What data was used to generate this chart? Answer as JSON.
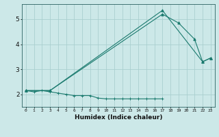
{
  "xlabel": "Humidex (Indice chaleur)",
  "background_color": "#cce8e8",
  "grid_color": "#aacfcf",
  "line_color": "#1a7a6e",
  "x_min": -0.5,
  "x_max": 23.5,
  "y_min": 1.5,
  "y_max": 5.6,
  "yticks": [
    2,
    3,
    4,
    5
  ],
  "xticks": [
    0,
    1,
    2,
    3,
    4,
    5,
    6,
    7,
    8,
    9,
    10,
    11,
    12,
    13,
    14,
    15,
    16,
    17,
    18,
    19,
    20,
    21,
    22,
    23
  ],
  "series1_x": [
    0,
    1,
    2,
    3,
    4,
    5,
    6,
    7,
    8,
    9,
    10,
    11,
    12,
    13,
    14,
    15,
    16,
    17
  ],
  "series1_y": [
    2.15,
    2.1,
    2.15,
    2.1,
    2.05,
    2.0,
    1.95,
    1.95,
    1.95,
    1.85,
    1.82,
    1.82,
    1.82,
    1.82,
    1.82,
    1.82,
    1.82,
    1.82
  ],
  "series2_x": [
    0,
    3,
    17,
    22,
    23
  ],
  "series2_y": [
    2.15,
    2.15,
    5.35,
    3.3,
    3.45
  ],
  "series3_x": [
    0,
    3,
    17,
    19,
    21,
    22,
    23
  ],
  "series3_y": [
    2.15,
    2.15,
    5.2,
    4.85,
    4.2,
    3.3,
    3.45
  ],
  "figwidth": 3.2,
  "figheight": 2.0,
  "dpi": 100
}
